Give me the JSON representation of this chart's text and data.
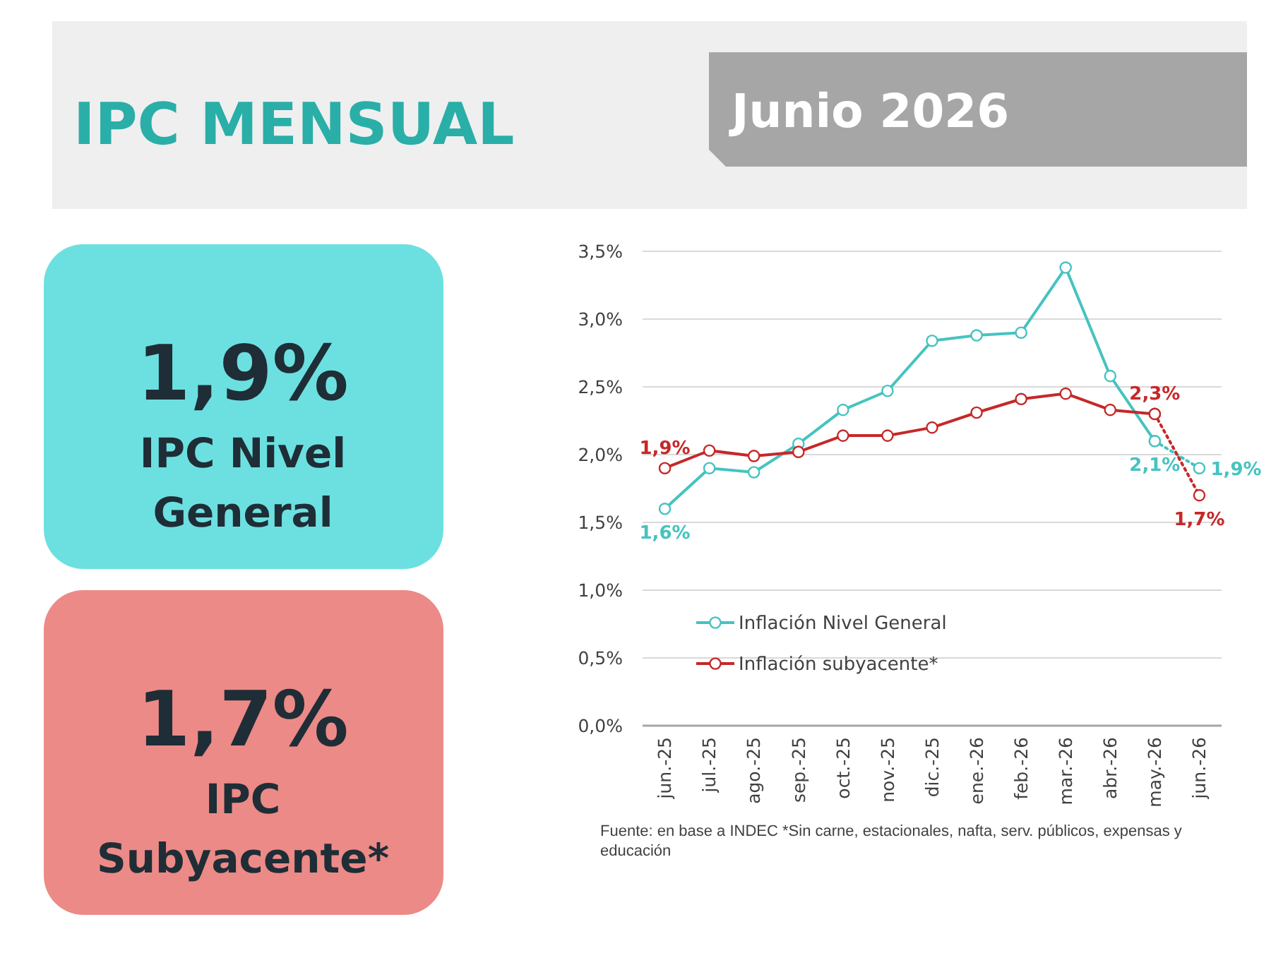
{
  "chart_data": [
    {
      "type": "other",
      "title": "IPC MENSUAL",
      "subtitle": "Junio 2026",
      "annotations": [
        "1,9%",
        "IPC Nivel General",
        "1,7%",
        "IPC Subyacente*"
      ]
    },
    {
      "type": "line",
      "categories": [
        "jun.-25",
        "jul.-25",
        "ago.-25",
        "sep.-25",
        "oct.-25",
        "nov.-25",
        "dic.-25",
        "ene.-26",
        "feb.-26",
        "mar.-26",
        "abr.-26",
        "may.-26",
        "jun.-26"
      ],
      "ylim": [
        0,
        3.5
      ],
      "yticks": [
        {
          "value": 0,
          "label": "0,0%"
        },
        {
          "value": 0.5,
          "label": "0,5%"
        },
        {
          "value": 1,
          "label": "1,0%"
        },
        {
          "value": 1.5,
          "label": "1,5%"
        },
        {
          "value": 2,
          "label": "2,0%"
        },
        {
          "value": 2.5,
          "label": "2,5%"
        },
        {
          "value": 3,
          "label": "3,0%"
        },
        {
          "value": 3.5,
          "label": "3,5%"
        }
      ],
      "grid": "y",
      "legend": "bottom left",
      "marker": "circle",
      "line_style": "solid",
      "series": [
        {
          "name": "Inflación Nivel General",
          "color": "#46c3c0",
          "values": [
            1.6,
            1.9,
            1.87,
            2.08,
            2.33,
            2.47,
            2.84,
            2.88,
            2.9,
            3.38,
            2.58,
            2.1,
            null
          ],
          "value_labels": [
            "1,6%",
            null,
            null,
            null,
            null,
            null,
            null,
            null,
            null,
            null,
            null,
            "2,1%",
            null
          ]
        },
        {
          "name": "Inflación subyacente*",
          "color": "#c62828",
          "values": [
            1.9,
            2.03,
            1.99,
            2.02,
            2.14,
            2.14,
            2.2,
            2.31,
            2.41,
            2.45,
            2.33,
            2.3,
            null
          ],
          "value_labels": [
            "1,9%",
            null,
            null,
            null,
            null,
            null,
            null,
            null,
            null,
            null,
            null,
            "2,3%",
            null
          ]
        },
        {
          "color": "#46c3c0",
          "line_style": "dotted",
          "values": [
            null,
            null,
            null,
            null,
            null,
            null,
            null,
            null,
            null,
            null,
            null,
            2.1,
            1.9
          ],
          "value_labels": [
            null,
            null,
            null,
            null,
            null,
            null,
            null,
            null,
            null,
            null,
            null,
            null,
            "1,9%"
          ]
        },
        {
          "color": "#c62828",
          "line_style": "dotted",
          "values": [
            null,
            null,
            null,
            null,
            null,
            null,
            null,
            null,
            null,
            null,
            null,
            2.3,
            1.7
          ],
          "value_labels": [
            null,
            null,
            null,
            null,
            null,
            null,
            null,
            null,
            null,
            null,
            null,
            null,
            "1,7%"
          ]
        }
      ],
      "annotations": [
        "Fuente: en base a INDEC *Sin carne, estacionales, nafta, serv. públicos, expensas y educación"
      ]
    }
  ]
}
